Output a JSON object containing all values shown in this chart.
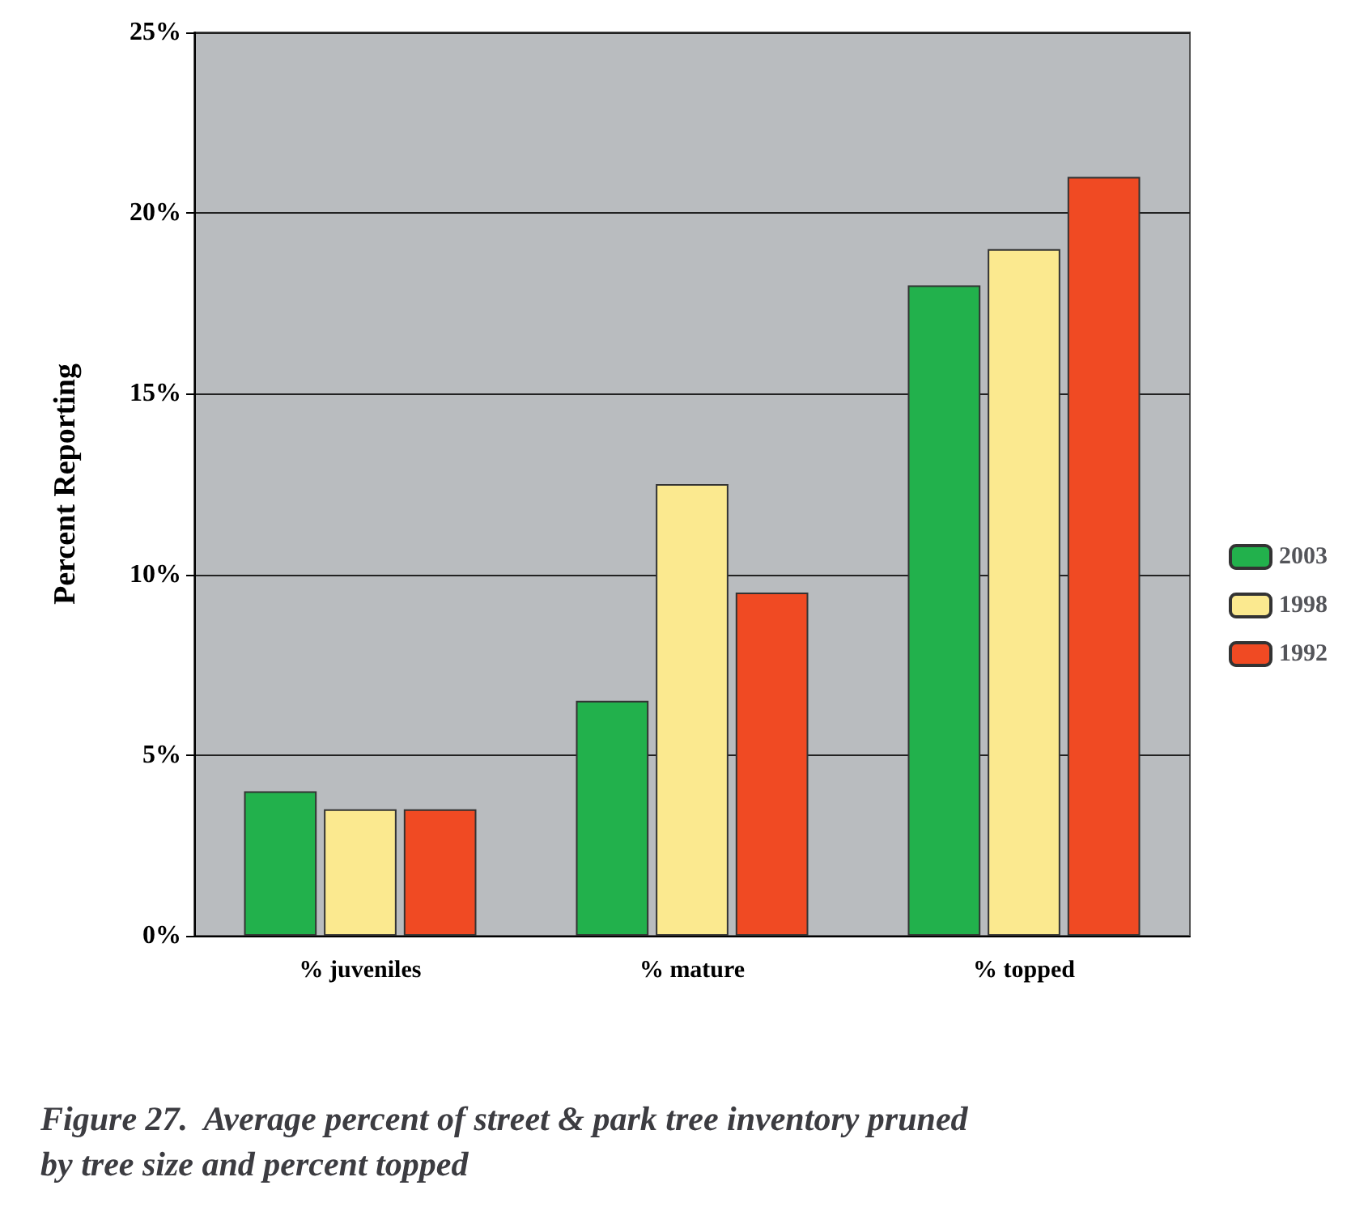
{
  "chart_data": {
    "type": "bar",
    "title": "Figure 27.  Average percent of street & park tree inventory pruned\nby tree size and percent topped",
    "ylabel": "Percent Reporting",
    "categories": [
      "% juveniles",
      "% mature",
      "% topped"
    ],
    "series": [
      {
        "name": "2003",
        "color": "#22b14c",
        "values": [
          4,
          6.5,
          18
        ]
      },
      {
        "name": "1998",
        "color": "#fbe98f",
        "values": [
          3.5,
          12.5,
          19
        ]
      },
      {
        "name": "1992",
        "color": "#f04a23",
        "values": [
          3.5,
          9.5,
          21
        ]
      }
    ],
    "ylim": [
      0,
      25
    ],
    "yticks": [
      {
        "value": 0,
        "label": "0%"
      },
      {
        "value": 5,
        "label": "5%"
      },
      {
        "value": 10,
        "label": "10%"
      },
      {
        "value": 15,
        "label": "15%"
      },
      {
        "value": 20,
        "label": "20%"
      },
      {
        "value": 25,
        "label": "25%"
      }
    ],
    "grid": "y",
    "legend": "right"
  }
}
